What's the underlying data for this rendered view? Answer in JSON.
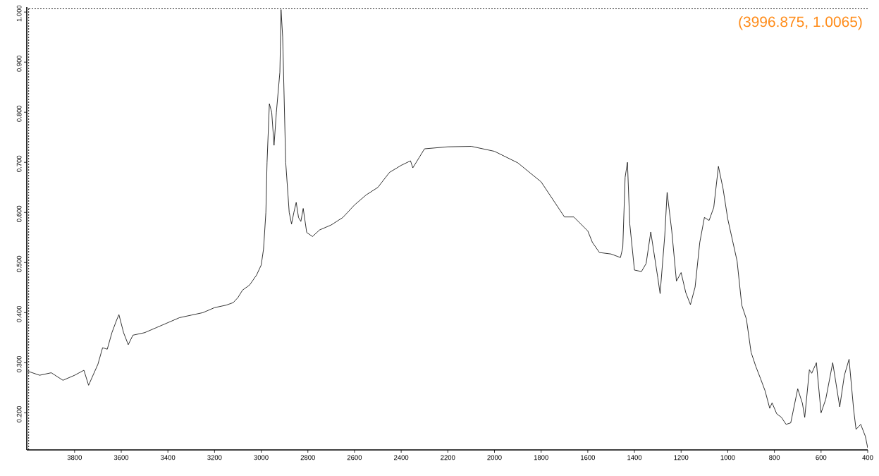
{
  "chart_data": {
    "type": "line",
    "x": [
      4000,
      3950,
      3900,
      3850,
      3800,
      3760,
      3740,
      3700,
      3680,
      3660,
      3640,
      3620,
      3610,
      3590,
      3570,
      3550,
      3500,
      3450,
      3400,
      3350,
      3300,
      3250,
      3200,
      3150,
      3120,
      3100,
      3080,
      3050,
      3020,
      3000,
      2990,
      2980,
      2975,
      2965,
      2955,
      2945,
      2935,
      2920,
      2918,
      2915,
      2908,
      2895,
      2880,
      2870,
      2860,
      2850,
      2840,
      2830,
      2820,
      2805,
      2780,
      2750,
      2700,
      2650,
      2600,
      2550,
      2500,
      2450,
      2400,
      2360,
      2350,
      2300,
      2200,
      2100,
      2000,
      1900,
      1800,
      1700,
      1660,
      1600,
      1580,
      1550,
      1500,
      1460,
      1450,
      1440,
      1430,
      1420,
      1400,
      1370,
      1350,
      1330,
      1300,
      1290,
      1270,
      1260,
      1240,
      1220,
      1200,
      1180,
      1160,
      1140,
      1120,
      1100,
      1080,
      1060,
      1040,
      1020,
      1000,
      980,
      960,
      940,
      920,
      900,
      880,
      860,
      840,
      820,
      810,
      790,
      770,
      750,
      730,
      700,
      680,
      670,
      650,
      640,
      620,
      600,
      580,
      550,
      520,
      500,
      480,
      460,
      450,
      430,
      410,
      400
    ],
    "series": [
      {
        "color": "#000000",
        "values": [
          0.283,
          0.275,
          0.28,
          0.265,
          0.275,
          0.285,
          0.255,
          0.297,
          0.33,
          0.327,
          0.36,
          0.385,
          0.396,
          0.36,
          0.336,
          0.355,
          0.36,
          0.37,
          0.38,
          0.39,
          0.395,
          0.4,
          0.41,
          0.415,
          0.42,
          0.43,
          0.445,
          0.455,
          0.475,
          0.495,
          0.527,
          0.6,
          0.7,
          0.817,
          0.8,
          0.734,
          0.8,
          0.88,
          0.93,
          1.005,
          0.95,
          0.7,
          0.6,
          0.577,
          0.6,
          0.62,
          0.59,
          0.582,
          0.608,
          0.56,
          0.552,
          0.565,
          0.575,
          0.59,
          0.615,
          0.635,
          0.65,
          0.68,
          0.694,
          0.703,
          0.689,
          0.727,
          0.731,
          0.732,
          0.722,
          0.699,
          0.661,
          0.591,
          0.591,
          0.563,
          0.54,
          0.52,
          0.517,
          0.51,
          0.53,
          0.67,
          0.7,
          0.577,
          0.485,
          0.482,
          0.498,
          0.561,
          0.47,
          0.438,
          0.554,
          0.64,
          0.563,
          0.463,
          0.48,
          0.44,
          0.416,
          0.451,
          0.54,
          0.59,
          0.584,
          0.61,
          0.692,
          0.647,
          0.587,
          0.545,
          0.503,
          0.415,
          0.387,
          0.321,
          0.293,
          0.269,
          0.244,
          0.209,
          0.22,
          0.198,
          0.191,
          0.177,
          0.18,
          0.248,
          0.219,
          0.191,
          0.286,
          0.279,
          0.3,
          0.2,
          0.227,
          0.3,
          0.212,
          0.275,
          0.307,
          0.205,
          0.167,
          0.177,
          0.153,
          0.13
        ]
      }
    ],
    "xlim": [
      4005,
      400
    ],
    "xticks": [
      3800,
      3600,
      3400,
      3200,
      3000,
      2800,
      2600,
      2400,
      2200,
      2000,
      1800,
      1600,
      1400,
      1200,
      1000,
      800,
      600,
      400
    ],
    "ylim": [
      0.126,
      1.01
    ],
    "yticks": [
      {
        "value": 0.2,
        "label": "0.200"
      },
      {
        "value": 0.3,
        "label": "0.300"
      },
      {
        "value": 0.4,
        "label": "0.400"
      },
      {
        "value": 0.5,
        "label": "0.500"
      },
      {
        "value": 0.6,
        "label": "0.600"
      },
      {
        "value": 0.7,
        "label": "0.700"
      },
      {
        "value": 0.8,
        "label": "0.800"
      },
      {
        "value": 0.9,
        "label": "0.900"
      },
      {
        "value": 1.0,
        "label": "1.000"
      }
    ],
    "ref_lines": [
      {
        "axis": "x",
        "value": 3996.875,
        "color": "#000000",
        "line_style": "dashed"
      },
      {
        "axis": "y",
        "value": 1.0065,
        "color": "#000000",
        "line_style": "dashed"
      }
    ],
    "annotations": [
      "(3996.875, 1.0065)"
    ],
    "marker": "none",
    "line_style": "solid"
  }
}
